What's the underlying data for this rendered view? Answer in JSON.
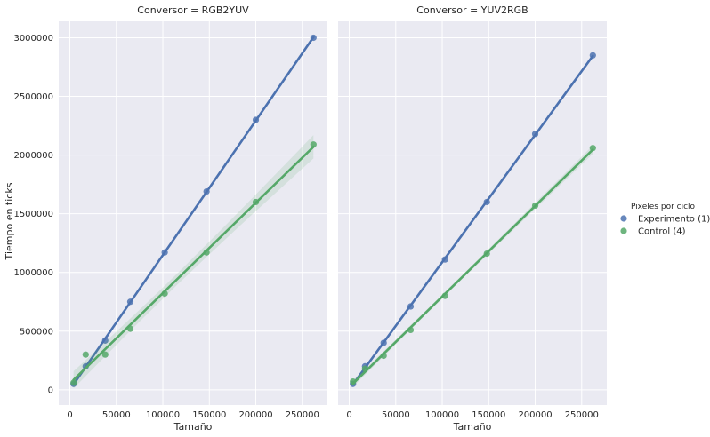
{
  "chart_data": {
    "type": "scatter",
    "ylabel": "Tiempo en ticks",
    "legend": {
      "title": "Pixeles por ciclo",
      "placement": "right",
      "entries": [
        "Experimento (1)",
        "Control (4)"
      ]
    },
    "colors": {
      "Experimento (1)": "#4c72b0",
      "Control (4)": "#55a868",
      "panel_bg": "#eaeaf2",
      "grid": "#ffffff"
    },
    "xlim": [
      -12000,
      277000
    ],
    "ylim": [
      -130000,
      3140000
    ],
    "x_ticks": [
      0,
      50000,
      100000,
      150000,
      200000,
      250000
    ],
    "y_ticks": [
      0,
      500000,
      1000000,
      1500000,
      2000000,
      2500000,
      3000000
    ],
    "regression_lines": true,
    "panels": [
      {
        "title": "Conversor = RGB2YUV",
        "xlabel": "Tamaño",
        "series": [
          {
            "name": "Experimento (1)",
            "x": [
              4000,
              17000,
              38000,
              65000,
              102000,
              147000,
              200000,
              262000
            ],
            "y": [
              50000,
              200000,
              420000,
              750000,
              1170000,
              1690000,
              2300000,
              3000000
            ]
          },
          {
            "name": "Control (4)",
            "x": [
              4000,
              17000,
              38000,
              65000,
              102000,
              147000,
              200000,
              262000
            ],
            "y": [
              60000,
              300000,
              300000,
              520000,
              820000,
              1170000,
              1600000,
              2090000
            ]
          }
        ]
      },
      {
        "title": "Conversor = YUV2RGB",
        "xlabel": "Tamaño",
        "series": [
          {
            "name": "Experimento (1)",
            "x": [
              4000,
              17000,
              37000,
              66000,
              103000,
              148000,
              200000,
              262000
            ],
            "y": [
              50000,
              200000,
              400000,
              710000,
              1110000,
              1600000,
              2180000,
              2850000
            ]
          },
          {
            "name": "Control (4)",
            "x": [
              4000,
              17000,
              37000,
              66000,
              103000,
              148000,
              200000,
              262000
            ],
            "y": [
              70000,
              180000,
              290000,
              510000,
              800000,
              1160000,
              1570000,
              2060000
            ]
          }
        ]
      }
    ]
  }
}
